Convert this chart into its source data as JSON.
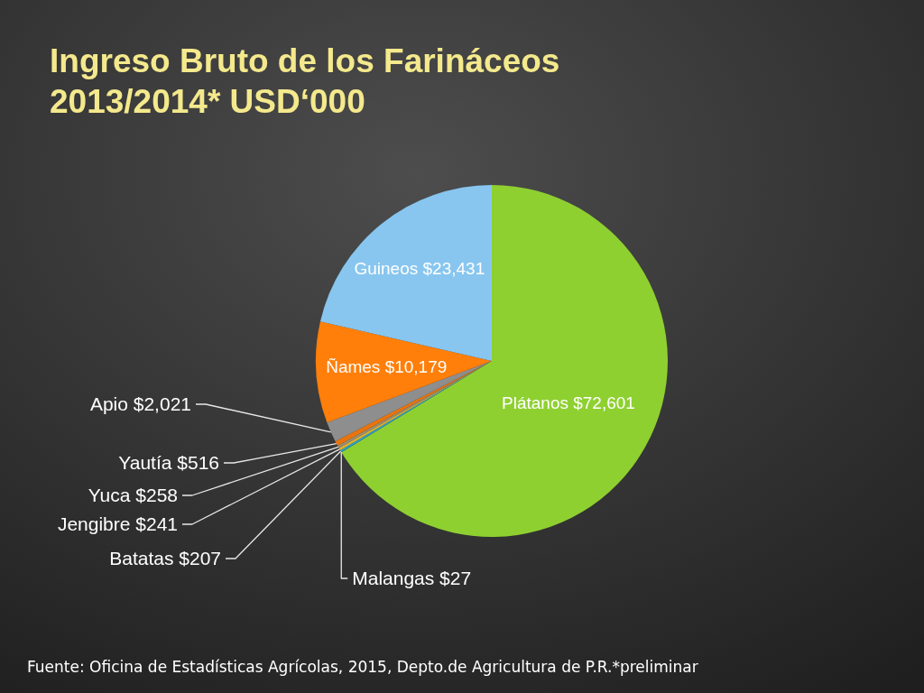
{
  "chart_data": {
    "type": "pie",
    "title": "Ingreso Bruto de los Farináceos\n2013/2014* USD‘000",
    "categories": [
      "Plátanos",
      "Malangas",
      "Batatas",
      "Jengibre",
      "Yuca",
      "Yautía",
      "Apio",
      "Ñames",
      "Guineos"
    ],
    "values": [
      72601,
      27,
      207,
      241,
      258,
      516,
      2021,
      10179,
      23431
    ],
    "value_labels": [
      "$72,601",
      "$27",
      "$207",
      "$241",
      "$258",
      "$516",
      "$2,021",
      "$10,179",
      "$23,431"
    ],
    "colors": [
      "#8fd031",
      "#2f78b8",
      "#2aa3c9",
      "#e3b526",
      "#9a8d72",
      "#e8740e",
      "#8e8e8e",
      "#ff7f0a",
      "#88c6ef"
    ],
    "legend": false,
    "annotations": [
      "Fuente: Oficina de Estadísticas Agrícolas, 2015, Depto.de Agricultura de P.R.*preliminar"
    ]
  }
}
